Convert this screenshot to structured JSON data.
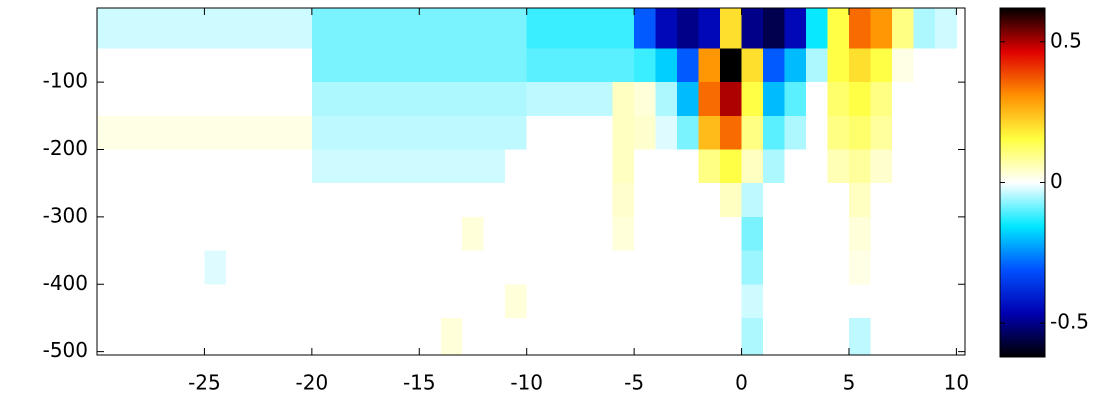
{
  "chart_data": {
    "type": "heatmap",
    "x": [
      -29.5,
      -28.5,
      -27.5,
      -26.5,
      -25.5,
      -24.5,
      -23.5,
      -22.5,
      -21.5,
      -20.5,
      -19.5,
      -18.5,
      -17.5,
      -16.5,
      -15.5,
      -14.5,
      -13.5,
      -12.5,
      -11.5,
      -10.5,
      -9.5,
      -8.5,
      -7.5,
      -6.5,
      -5.5,
      -4.5,
      -3.5,
      -2.5,
      -1.5,
      -0.5,
      0.5,
      1.5,
      2.5,
      3.5,
      4.5,
      5.5,
      6.5,
      7.5,
      8.5,
      9.5
    ],
    "y": [
      -25,
      -75,
      -125,
      -175,
      -225,
      -275,
      -325,
      -375,
      -425,
      -475
    ],
    "z": [
      [
        -0.03,
        -0.03,
        -0.03,
        -0.03,
        -0.03,
        -0.03,
        -0.03,
        -0.03,
        -0.03,
        -0.03,
        -0.08,
        -0.08,
        -0.08,
        -0.08,
        -0.08,
        -0.08,
        -0.08,
        -0.08,
        -0.08,
        -0.08,
        -0.12,
        -0.12,
        -0.12,
        -0.12,
        -0.12,
        -0.3,
        -0.45,
        -0.5,
        -0.45,
        0.2,
        -0.5,
        -0.55,
        -0.45,
        -0.15,
        0.15,
        0.35,
        0.3,
        0.1,
        -0.05,
        -0.03
      ],
      [
        0,
        0,
        0,
        0,
        0,
        0,
        0,
        0,
        0,
        0,
        -0.08,
        -0.08,
        -0.08,
        -0.08,
        -0.08,
        -0.08,
        -0.08,
        -0.08,
        -0.08,
        -0.08,
        -0.1,
        -0.1,
        -0.1,
        -0.1,
        -0.1,
        -0.12,
        -0.18,
        -0.3,
        0.3,
        0.62,
        0.2,
        -0.3,
        -0.2,
        -0.05,
        0.15,
        0.2,
        0.15,
        0.02,
        0,
        0
      ],
      [
        0,
        0,
        0,
        0,
        0,
        0,
        0,
        0,
        0,
        0,
        -0.05,
        -0.05,
        -0.05,
        -0.05,
        -0.05,
        -0.05,
        -0.05,
        -0.05,
        -0.05,
        -0.05,
        -0.04,
        -0.04,
        -0.04,
        -0.04,
        0.05,
        0.03,
        -0.05,
        -0.2,
        0.35,
        0.5,
        0.15,
        -0.2,
        -0.1,
        0,
        0.12,
        0.15,
        0.1,
        0,
        0,
        0
      ],
      [
        0.02,
        0.02,
        0.02,
        0.02,
        0.02,
        0.02,
        0.02,
        0.02,
        0.02,
        0.02,
        -0.04,
        -0.04,
        -0.04,
        -0.04,
        -0.04,
        -0.04,
        -0.04,
        -0.04,
        -0.04,
        -0.04,
        0,
        0,
        0,
        0,
        0.05,
        0.04,
        -0.02,
        -0.08,
        0.25,
        0.35,
        0.1,
        -0.1,
        -0.05,
        0,
        0.1,
        0.12,
        0.08,
        0,
        0,
        0
      ],
      [
        0,
        0,
        0,
        0,
        0,
        0,
        0,
        0,
        0,
        0,
        -0.03,
        -0.03,
        -0.03,
        -0.03,
        -0.03,
        -0.03,
        -0.03,
        -0.03,
        -0.03,
        0,
        0,
        0,
        0,
        0,
        0.05,
        0,
        0,
        0,
        0.1,
        0.15,
        0.05,
        -0.05,
        0,
        0,
        0.06,
        0.08,
        0.04,
        0,
        0,
        0
      ],
      [
        0,
        0,
        0,
        0,
        0,
        0,
        0,
        0,
        0,
        0,
        0,
        0,
        0,
        0,
        0,
        0,
        0,
        0,
        0,
        0,
        0,
        0,
        0,
        0,
        0.04,
        0,
        0,
        0,
        0,
        0.05,
        -0.04,
        0,
        0,
        0,
        0,
        0.05,
        0,
        0,
        0,
        0
      ],
      [
        0,
        0,
        0,
        0,
        0,
        0,
        0,
        0,
        0,
        0,
        0,
        0,
        0,
        0,
        0,
        0,
        0,
        0.03,
        0,
        0,
        0,
        0,
        0,
        0,
        0.03,
        0,
        0,
        0,
        0,
        0,
        -0.08,
        0,
        0,
        0,
        0,
        0.03,
        0,
        0,
        0,
        0
      ],
      [
        0,
        0,
        0,
        0,
        0,
        -0.02,
        0,
        0,
        0,
        0,
        0,
        0,
        0,
        0,
        0,
        0,
        0,
        0,
        0,
        0,
        0,
        0,
        0,
        0,
        0,
        0,
        0,
        0,
        0,
        0,
        -0.06,
        0,
        0,
        0,
        0,
        0.02,
        0,
        0,
        0,
        0
      ],
      [
        0,
        0,
        0,
        0,
        0,
        0,
        0,
        0,
        0,
        0,
        0,
        0,
        0,
        0,
        0,
        0,
        0,
        0,
        0,
        0.03,
        0,
        0,
        0,
        0,
        0,
        0,
        0,
        0,
        0,
        0,
        -0.03,
        0,
        0,
        0,
        0,
        0,
        0,
        0,
        0,
        0
      ],
      [
        0,
        0,
        0,
        0,
        0,
        0,
        0,
        0,
        0,
        0,
        0,
        0,
        0,
        0,
        0,
        0,
        0.03,
        0,
        0,
        0,
        0,
        0,
        0,
        0,
        0,
        0,
        0,
        0,
        0,
        0,
        -0.05,
        0,
        0,
        0,
        0,
        -0.04,
        0,
        0,
        0,
        0
      ]
    ],
    "xlim": [
      -30,
      10.4
    ],
    "ylim": [
      -505,
      10
    ],
    "xticks": [
      -25,
      -20,
      -15,
      -10,
      -5,
      0,
      5,
      10
    ],
    "yticks": [
      -500,
      -400,
      -300,
      -200,
      -100
    ],
    "clim": [
      -0.62,
      0.62
    ],
    "cticks": [
      -0.5,
      0,
      0.5
    ],
    "colormap": [
      "#000000",
      "#0000b0",
      "#0050ff",
      "#00e8ff",
      "#ffffff",
      "#ffff40",
      "#ff9000",
      "#e00000",
      "#000000"
    ]
  }
}
